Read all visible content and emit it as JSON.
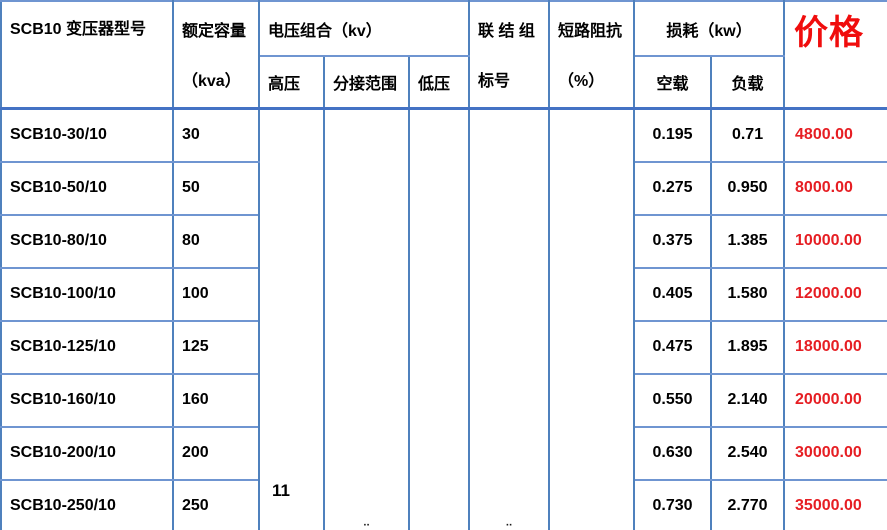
{
  "table": {
    "header": {
      "model": "SCB10 变压器型号",
      "capacity_line1": "额定容量",
      "capacity_line2": "（kva）",
      "voltage_group": "电压组合（kv）",
      "high_voltage": "高压",
      "tap_range": "分接范围",
      "low_voltage": "低压",
      "connection_line1": "联 结 组",
      "connection_line2": "标号",
      "impedance_line1": "短路阻抗",
      "impedance_line2": "（%）",
      "loss_group": "损耗（kw）",
      "no_load": "空载",
      "load": "负载",
      "price": "价格"
    },
    "merged": {
      "high_voltage_value": "11",
      "tap_range_clipped_glyph": "¨",
      "connection_clipped_glyph": "¨"
    },
    "rows": [
      {
        "model": "SCB10-30/10",
        "capacity": "30",
        "no_load": "0.195",
        "load": "0.71",
        "price": "4800.00"
      },
      {
        "model": "SCB10-50/10",
        "capacity": "50",
        "no_load": "0.275",
        "load": "0.950",
        "price": "8000.00"
      },
      {
        "model": "SCB10-80/10",
        "capacity": "80",
        "no_load": "0.375",
        "load": "1.385",
        "price": "10000.00"
      },
      {
        "model": "SCB10-100/10",
        "capacity": "100",
        "no_load": "0.405",
        "load": "1.580",
        "price": "12000.00"
      },
      {
        "model": "SCB10-125/10",
        "capacity": "125",
        "no_load": "0.475",
        "load": "1.895",
        "price": "18000.00"
      },
      {
        "model": "SCB10-160/10",
        "capacity": "160",
        "no_load": "0.550",
        "load": "2.140",
        "price": "20000.00"
      },
      {
        "model": "SCB10-200/10",
        "capacity": "200",
        "no_load": "0.630",
        "load": "2.540",
        "price": "30000.00"
      },
      {
        "model": "SCB10-250/10",
        "capacity": "250",
        "no_load": "0.730",
        "load": "2.770",
        "price": "35000.00"
      }
    ]
  },
  "colors": {
    "border_vertical": "#4f81bd",
    "border_horizontal": "#6f95d1",
    "header_bottom_border": "#4472c4",
    "price_header_red": "#f00d0d",
    "price_value_red": "#e61e23",
    "text": "#000000"
  }
}
